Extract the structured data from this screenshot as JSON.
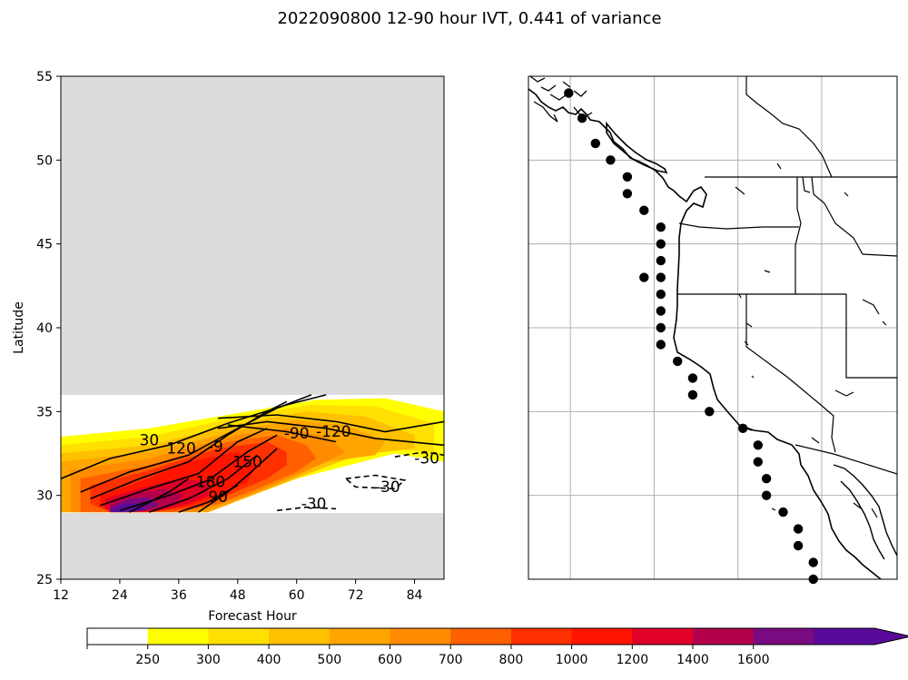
{
  "title": "2022090800 12-90 hour IVT, 0.441 of variance",
  "chart_data": [
    {
      "type": "heatmap",
      "panel": "hovmoller",
      "xlabel": "Forecast Hour",
      "ylabel": "Latitude",
      "xlim": [
        12,
        90
      ],
      "ylim": [
        25,
        55
      ],
      "x_ticks": [
        "12",
        "24",
        "36",
        "48",
        "60",
        "72",
        "84"
      ],
      "y_ticks": [
        "25",
        "30",
        "35",
        "40",
        "45",
        "50",
        "55"
      ],
      "missing_data_color": "#dcdcdc",
      "data_domain_lat": [
        29,
        36
      ],
      "filled_ivt_regions": [
        {
          "level": 250,
          "color": "#ffff00",
          "x": [
            12,
            30,
            50,
            64,
            78,
            90,
            90,
            80,
            60,
            40,
            24,
            12
          ],
          "y": [
            33.5,
            34,
            35,
            35.7,
            35.8,
            35,
            32,
            32.5,
            31,
            29,
            29,
            29
          ]
        },
        {
          "level": 300,
          "color": "#ffe000",
          "x": [
            12,
            30,
            50,
            63,
            76,
            88,
            88,
            76,
            60,
            42,
            24,
            12
          ],
          "y": [
            33,
            33.5,
            34.8,
            35.4,
            35.3,
            34.3,
            32.6,
            32.8,
            31,
            29,
            29,
            29
          ]
        },
        {
          "level": 400,
          "color": "#ffc000",
          "x": [
            12,
            30,
            50,
            62,
            74,
            84,
            84,
            72,
            58,
            42,
            24,
            12
          ],
          "y": [
            32.5,
            33,
            34.4,
            35,
            34.7,
            33.6,
            32.8,
            32.4,
            30.8,
            29,
            29,
            29
          ]
        },
        {
          "level": 500,
          "color": "#ffa500",
          "x": [
            12,
            30,
            50,
            60,
            70,
            78,
            76,
            66,
            56,
            42,
            24,
            12
          ],
          "y": [
            32,
            32.6,
            34,
            34.5,
            34.2,
            33.2,
            32.4,
            32,
            30.6,
            29,
            29,
            29
          ]
        },
        {
          "level": 600,
          "color": "#ff8c00",
          "x": [
            14,
            30,
            48,
            58,
            66,
            70,
            66,
            58,
            50,
            40,
            24,
            14
          ],
          "y": [
            31.5,
            32.2,
            33.6,
            34,
            33.5,
            32.6,
            32,
            31,
            30,
            29,
            29,
            29
          ]
        },
        {
          "level": 700,
          "color": "#ff6000",
          "x": [
            16,
            30,
            46,
            56,
            62,
            64,
            60,
            52,
            44,
            36,
            24,
            16
          ],
          "y": [
            31,
            31.8,
            33.2,
            33.6,
            33,
            32.2,
            31.4,
            30.4,
            29.5,
            29,
            29,
            29
          ]
        },
        {
          "level": 800,
          "color": "#ff3000",
          "x": [
            18,
            30,
            44,
            54,
            58,
            58,
            54,
            46,
            40,
            30,
            22,
            18
          ],
          "y": [
            30.6,
            31.5,
            32.8,
            33.2,
            32.6,
            31.8,
            31,
            30,
            29.3,
            29,
            29,
            29.5
          ]
        },
        {
          "level": 1000,
          "color": "#ff1400",
          "x": [
            20,
            28,
            38,
            48,
            52,
            50,
            44,
            38,
            30,
            22,
            20
          ],
          "y": [
            30,
            30.8,
            32,
            32.6,
            31.8,
            30.8,
            30,
            29.4,
            29,
            29,
            29.5
          ]
        },
        {
          "level": 1200,
          "color": "#e00028",
          "x": [
            21,
            28,
            36,
            42,
            42,
            38,
            32,
            26,
            21
          ],
          "y": [
            29.8,
            30.4,
            31,
            30.8,
            30,
            29.5,
            29.1,
            29,
            29.2
          ]
        },
        {
          "level": 1400,
          "color": "#b4004a",
          "x": [
            22,
            27,
            33,
            37,
            35,
            30,
            25,
            22
          ],
          "y": [
            29.6,
            30.1,
            30.4,
            30,
            29.4,
            29.1,
            29,
            29.2
          ]
        },
        {
          "level": 1600,
          "color": "#7a0a80",
          "x": [
            22,
            26,
            30,
            32,
            29,
            25,
            22
          ],
          "y": [
            29.3,
            29.8,
            29.9,
            29.4,
            29.1,
            29,
            29.1
          ]
        },
        {
          "level": 1800,
          "color": "#5a0a9a",
          "x": [
            22,
            25,
            28,
            29,
            26,
            22
          ],
          "y": [
            29.1,
            29.5,
            29.5,
            29.1,
            29,
            29
          ]
        }
      ],
      "contour_labels": [
        {
          "text": "120",
          "x": 36.5,
          "y": 32.5
        },
        {
          "text": "-9",
          "x": 43.5,
          "y": 32.6
        },
        {
          "text": "-90",
          "x": 60,
          "y": 33.4
        },
        {
          "text": "-120",
          "x": 67.5,
          "y": 33.5
        },
        {
          "text": "150",
          "x": 50,
          "y": 31.7
        },
        {
          "text": "180",
          "x": 42.5,
          "y": 30.5
        },
        {
          "text": "-30",
          "x": 86.5,
          "y": 31.9
        },
        {
          "text": "-30",
          "x": 78.5,
          "y": 30.2
        },
        {
          "text": "-30",
          "x": 63.5,
          "y": 29.2
        },
        {
          "text": "90",
          "x": 44,
          "y": 29.6
        },
        {
          "text": "30",
          "x": 30,
          "y": 33
        }
      ]
    },
    {
      "type": "scatter",
      "panel": "map",
      "xlim": [
        -130,
        -108
      ],
      "ylim": [
        25,
        55
      ],
      "gridlines_lon": [
        -127.5,
        -122.5,
        -117.5,
        -112.5
      ],
      "gridlines_lat": [
        30,
        35,
        40,
        45,
        50
      ],
      "points": {
        "lon": [
          -127.6,
          -126.8,
          -126.0,
          -125.1,
          -124.1,
          -124.1,
          -123.1,
          -122.1,
          -122.1,
          -122.1,
          -122.1,
          -123.1,
          -122.1,
          -122.1,
          -122.1,
          -122.1,
          -121.1,
          -120.2,
          -120.2,
          -119.2,
          -117.2,
          -116.3,
          -116.3,
          -115.8,
          -115.8,
          -114.8,
          -113.9,
          -113.9,
          -113.0,
          -113.0
        ],
        "lat": [
          54.0,
          52.5,
          51.0,
          50.0,
          49.0,
          48.0,
          47.0,
          46.0,
          45.0,
          44.0,
          43.0,
          43.0,
          42.0,
          41.0,
          40.0,
          39.0,
          38.0,
          37.0,
          36.0,
          35.0,
          34.0,
          33.0,
          32.0,
          31.0,
          30.0,
          29.0,
          28.0,
          27.0,
          26.0,
          25.0
        ]
      }
    }
  ],
  "colorbar": {
    "ticks": [
      "250",
      "300",
      "400",
      "500",
      "600",
      "700",
      "800",
      "1000",
      "1200",
      "1400",
      "1600"
    ],
    "colors": [
      "#ffffff",
      "#ffff00",
      "#ffe000",
      "#ffc000",
      "#ffa500",
      "#ff8c00",
      "#ff6000",
      "#ff3000",
      "#ff1400",
      "#e00028",
      "#b4004a",
      "#7a0a80",
      "#5a0a9a"
    ],
    "extend_color": "#5a0a9a"
  }
}
